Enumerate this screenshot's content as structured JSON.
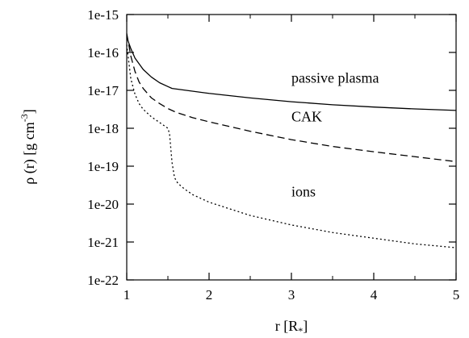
{
  "chart_data": {
    "type": "line",
    "title": "",
    "xlabel": "r [R",
    "xlabel_sub": "*",
    "xlabel_close": "]",
    "ylabel": "ρ (r) [g cm",
    "ylabel_sup": "-3",
    "ylabel_close": "]",
    "xlim": [
      1,
      5
    ],
    "ylim_log10": [
      -22,
      -15
    ],
    "yscale": "log",
    "grid": false,
    "x_ticks": [
      1,
      2,
      3,
      4,
      5
    ],
    "x_tick_labels": [
      "1",
      "2",
      "3",
      "4",
      "5"
    ],
    "y_ticks_log10": [
      -15,
      -16,
      -17,
      -18,
      -19,
      -20,
      -21,
      -22
    ],
    "y_tick_labels": [
      "1e-15",
      "1e-16",
      "1e-17",
      "1e-18",
      "1e-19",
      "1e-20",
      "1e-21",
      "1e-22"
    ],
    "series": [
      {
        "name": "passive plasma",
        "linestyle": "solid",
        "color": "#000000",
        "x": [
          1.0,
          1.05,
          1.1,
          1.2,
          1.3,
          1.4,
          1.5,
          1.55,
          2.0,
          2.5,
          3.0,
          3.5,
          4.0,
          4.5,
          5.0
        ],
        "log10_y": [
          -15.6,
          -15.9,
          -16.15,
          -16.45,
          -16.65,
          -16.8,
          -16.9,
          -16.95,
          -17.08,
          -17.2,
          -17.3,
          -17.38,
          -17.44,
          -17.49,
          -17.53
        ]
      },
      {
        "name": "CAK",
        "linestyle": "dashed",
        "color": "#000000",
        "x": [
          1.0,
          1.05,
          1.1,
          1.15,
          1.2,
          1.3,
          1.4,
          1.5,
          1.6,
          1.8,
          2.0,
          2.5,
          3.0,
          3.5,
          4.0,
          4.5,
          5.0
        ],
        "log10_y": [
          -15.5,
          -16.1,
          -16.5,
          -16.78,
          -16.95,
          -17.2,
          -17.35,
          -17.48,
          -17.58,
          -17.72,
          -17.83,
          -18.08,
          -18.3,
          -18.48,
          -18.62,
          -18.75,
          -18.88
        ]
      },
      {
        "name": "ions",
        "linestyle": "dotted",
        "color": "#000000",
        "x": [
          1.0,
          1.05,
          1.1,
          1.15,
          1.2,
          1.3,
          1.4,
          1.5,
          1.52,
          1.55,
          1.58,
          1.62,
          1.7,
          1.8,
          2.0,
          2.5,
          3.0,
          3.5,
          4.0,
          4.5,
          5.0
        ],
        "log10_y": [
          -15.8,
          -16.7,
          -17.1,
          -17.35,
          -17.5,
          -17.7,
          -17.85,
          -18.0,
          -18.15,
          -18.9,
          -19.3,
          -19.45,
          -19.6,
          -19.75,
          -19.95,
          -20.3,
          -20.55,
          -20.75,
          -20.9,
          -21.05,
          -21.15
        ]
      }
    ],
    "annotations": [
      {
        "text": "passive plasma",
        "x": 3.0,
        "log10_y": -16.8
      },
      {
        "text": "CAK",
        "x": 3.0,
        "log10_y": -17.82
      },
      {
        "text": "ions",
        "x": 3.0,
        "log10_y": -19.8
      }
    ]
  }
}
